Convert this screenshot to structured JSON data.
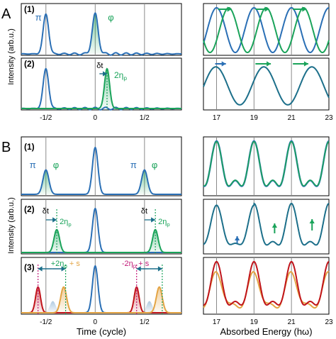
{
  "figure": {
    "section_labels": [
      "A",
      "B"
    ],
    "row_labels_A": [
      "(1)",
      "(2)"
    ],
    "row_labels_B": [
      "(1)",
      "(2)",
      "(3)"
    ],
    "ylabel_A": "Intensity (arb.u.)",
    "ylabel_B": "Intensity (arb.u.)",
    "xlabel_left": "Time (cycle)",
    "xlabel_right": "Absorbed Energy (hω)",
    "time_ticks": [
      "-1/2",
      "0",
      "1/2"
    ],
    "energy_ticks": [
      "17",
      "19",
      "21",
      "23"
    ],
    "annotations": {
      "pi": "π",
      "phi": "φ",
      "delta_t": "δt",
      "two_eta": "2η",
      "eta_sub": "p",
      "plus_label": "+2η",
      "plus_s": " + s",
      "minus_label": "-2η",
      "minus_s": " + s"
    },
    "colors": {
      "blue": "#2a6fb5",
      "green": "#1aa35a",
      "teal": "#1c6f8a",
      "red": "#c0141b",
      "orange": "#e3a444",
      "pink": "#c21a78",
      "grid": "#8a8a8a"
    }
  },
  "chart_data": [
    {
      "type": "line",
      "panel": "A1-time",
      "xlim": [
        -0.75,
        0.875
      ],
      "series": [
        {
          "name": "π",
          "peaks": [
            {
              "x": -0.5,
              "height": 0.85
            }
          ]
        },
        {
          "name": "φ",
          "peaks": [
            {
              "x": 0.0,
              "height": 0.85
            }
          ]
        }
      ]
    },
    {
      "type": "line",
      "panel": "A1-spectrum",
      "xlim": [
        16.3,
        23
      ],
      "series": [
        {
          "period_hw": 2,
          "phase": "in"
        },
        {
          "period_hw": 2,
          "phase": "shifted"
        }
      ]
    },
    {
      "type": "line",
      "panel": "A2-time",
      "xlim": [
        -0.75,
        0.875
      ],
      "series": [
        {
          "name": "π",
          "peaks": [
            {
              "x": -0.5,
              "height": 0.85
            }
          ]
        },
        {
          "name": "φ",
          "peaks": [
            {
              "x": 0.12,
              "height": 0.85
            }
          ]
        }
      ]
    },
    {
      "type": "line",
      "panel": "A2-spectrum",
      "xlim": [
        16.3,
        23
      ]
    },
    {
      "type": "line",
      "panel": "B1-time",
      "series": [
        {
          "name": "π",
          "peaks": [
            {
              "x": -0.5
            },
            {
              "x": 0.5
            }
          ]
        },
        {
          "name": "φ",
          "peaks": [
            {
              "x": -0.5
            },
            {
              "x": 0.5
            }
          ]
        }
      ]
    },
    {
      "type": "line",
      "panel": "B2-time"
    },
    {
      "type": "line",
      "panel": "B3-time"
    },
    {
      "type": "line",
      "panel": "B1-spectrum",
      "xlim": [
        16.3,
        23
      ]
    },
    {
      "type": "line",
      "panel": "B2-spectrum",
      "xlim": [
        16.3,
        23
      ]
    },
    {
      "type": "line",
      "panel": "B3-spectrum",
      "xlim": [
        16.3,
        23
      ]
    }
  ]
}
